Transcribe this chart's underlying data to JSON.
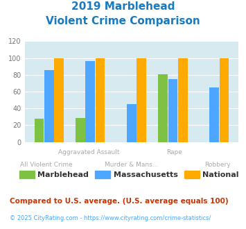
{
  "title_line1": "2019 Marblehead",
  "title_line2": "Violent Crime Comparison",
  "top_labels": [
    "",
    "Aggravated Assault",
    "",
    "Rape",
    ""
  ],
  "bot_labels": [
    "All Violent Crime",
    "",
    "Murder & Mans...",
    "",
    "Robbery"
  ],
  "marblehead": [
    28,
    29,
    0,
    81,
    0
  ],
  "massachusetts": [
    86,
    96,
    45,
    75,
    65
  ],
  "national": [
    100,
    100,
    100,
    100,
    100
  ],
  "color_marblehead": "#7dc242",
  "color_massachusetts": "#4da6ff",
  "color_national": "#ffaa00",
  "ylim": [
    0,
    120
  ],
  "yticks": [
    0,
    20,
    40,
    60,
    80,
    100,
    120
  ],
  "bg_color": "#d6eaf0",
  "title_color": "#1a7abf",
  "axis_label_color": "#aaaaaa",
  "footnote1": "Compared to U.S. average. (U.S. average equals 100)",
  "footnote2": "© 2025 CityRating.com - https://www.cityrating.com/crime-statistics/",
  "footnote1_color": "#cc3300",
  "footnote2_color": "#4da6ff"
}
